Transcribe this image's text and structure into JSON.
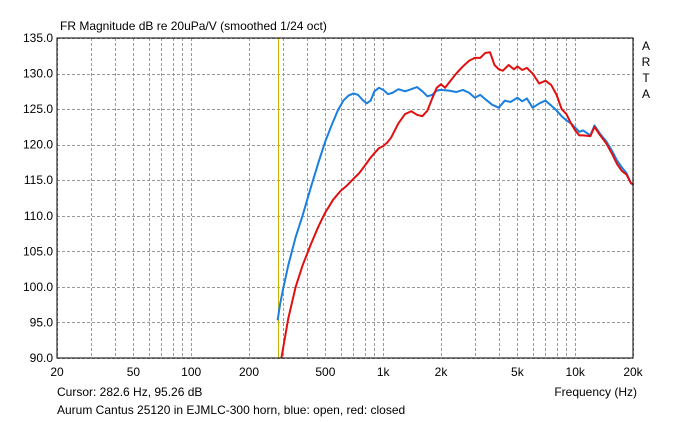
{
  "colors": {
    "background": "#ffffff",
    "plot_background": "#ffffff",
    "grid": "#9a9a9a",
    "blue": "#1a7fe0",
    "red": "#e01010",
    "cursor": "#c8b400",
    "frame": "#000000"
  },
  "chart_data": {
    "type": "line",
    "title": "FR Magnitude dB re 20uPa/V (smoothed 1/24 oct)",
    "xlabel": "Frequency (Hz)",
    "ylabel": "",
    "x_scale": "log",
    "xlim": [
      20,
      20000
    ],
    "ylim": [
      90,
      135
    ],
    "grid": true,
    "x_ticks": [
      {
        "value": 20,
        "label": "20"
      },
      {
        "value": 50,
        "label": "50"
      },
      {
        "value": 100,
        "label": "100"
      },
      {
        "value": 200,
        "label": "200"
      },
      {
        "value": 500,
        "label": "500"
      },
      {
        "value": 1000,
        "label": "1k"
      },
      {
        "value": 2000,
        "label": "2k"
      },
      {
        "value": 5000,
        "label": "5k"
      },
      {
        "value": 10000,
        "label": "10k"
      },
      {
        "value": 20000,
        "label": "20k"
      }
    ],
    "x_minor_gridlines": [
      30,
      40,
      60,
      70,
      80,
      90,
      300,
      400,
      600,
      700,
      800,
      900,
      3000,
      4000,
      6000,
      7000,
      8000,
      9000
    ],
    "y_ticks": [
      {
        "value": 90,
        "label": "90.0"
      },
      {
        "value": 95,
        "label": "95.0"
      },
      {
        "value": 100,
        "label": "100.0"
      },
      {
        "value": 105,
        "label": "105.0"
      },
      {
        "value": 110,
        "label": "110.0"
      },
      {
        "value": 115,
        "label": "115.0"
      },
      {
        "value": 120,
        "label": "120.0"
      },
      {
        "value": 125,
        "label": "125.0"
      },
      {
        "value": 130,
        "label": "130.0"
      },
      {
        "value": 135,
        "label": "135.0"
      }
    ],
    "side_label": [
      "A",
      "R",
      "T",
      "A"
    ],
    "cursor": {
      "frequency": 282.6,
      "text": "Cursor: 282.6 Hz, 95.26 dB"
    },
    "caption": "Aurum Cantus 25120 in EJMLC-300 horn, blue: open, red: closed",
    "series": [
      {
        "color": "blue",
        "points": [
          [
            282,
            95.3
          ],
          [
            290,
            97.5
          ],
          [
            300,
            99.5
          ],
          [
            320,
            103
          ],
          [
            350,
            107
          ],
          [
            380,
            110
          ],
          [
            420,
            114
          ],
          [
            460,
            117.5
          ],
          [
            500,
            120.5
          ],
          [
            540,
            122.8
          ],
          [
            580,
            124.8
          ],
          [
            620,
            126.2
          ],
          [
            660,
            126.9
          ],
          [
            700,
            127.2
          ],
          [
            740,
            127.0
          ],
          [
            780,
            126.3
          ],
          [
            820,
            125.8
          ],
          [
            860,
            126.2
          ],
          [
            900,
            127.5
          ],
          [
            950,
            128.0
          ],
          [
            1000,
            127.7
          ],
          [
            1060,
            127.1
          ],
          [
            1120,
            127.3
          ],
          [
            1200,
            127.8
          ],
          [
            1300,
            127.5
          ],
          [
            1400,
            127.8
          ],
          [
            1500,
            128.1
          ],
          [
            1600,
            127.5
          ],
          [
            1700,
            126.8
          ],
          [
            1800,
            127.0
          ],
          [
            1900,
            127.6
          ],
          [
            2000,
            127.7
          ],
          [
            2200,
            127.6
          ],
          [
            2400,
            127.4
          ],
          [
            2600,
            127.7
          ],
          [
            2800,
            127.3
          ],
          [
            3000,
            126.6
          ],
          [
            3200,
            127.0
          ],
          [
            3400,
            126.4
          ],
          [
            3700,
            125.6
          ],
          [
            4000,
            125.2
          ],
          [
            4300,
            126.2
          ],
          [
            4600,
            126.0
          ],
          [
            5000,
            126.6
          ],
          [
            5300,
            126.1
          ],
          [
            5600,
            126.5
          ],
          [
            6000,
            125.2
          ],
          [
            6500,
            125.8
          ],
          [
            7000,
            126.2
          ],
          [
            7500,
            125.5
          ],
          [
            8000,
            124.8
          ],
          [
            8500,
            124.0
          ],
          [
            9000,
            123.4
          ],
          [
            9500,
            123.0
          ],
          [
            10000,
            122.4
          ],
          [
            10500,
            121.8
          ],
          [
            11000,
            122.0
          ],
          [
            12000,
            121.3
          ],
          [
            12600,
            122.7
          ],
          [
            13500,
            121.5
          ],
          [
            14500,
            120.5
          ],
          [
            15500,
            119.2
          ],
          [
            16500,
            117.8
          ],
          [
            17500,
            116.8
          ],
          [
            18500,
            116.0
          ],
          [
            19500,
            114.6
          ],
          [
            20000,
            114.4
          ]
        ]
      },
      {
        "color": "red",
        "points": [
          [
            295,
            90.0
          ],
          [
            320,
            95.5
          ],
          [
            350,
            100.0
          ],
          [
            380,
            103.0
          ],
          [
            420,
            106.0
          ],
          [
            460,
            108.5
          ],
          [
            500,
            110.5
          ],
          [
            550,
            112.3
          ],
          [
            600,
            113.5
          ],
          [
            650,
            114.3
          ],
          [
            700,
            115.2
          ],
          [
            750,
            116.0
          ],
          [
            800,
            117.0
          ],
          [
            850,
            118.0
          ],
          [
            900,
            118.8
          ],
          [
            950,
            119.5
          ],
          [
            1000,
            119.8
          ],
          [
            1050,
            120.3
          ],
          [
            1100,
            121.0
          ],
          [
            1200,
            123.0
          ],
          [
            1300,
            124.3
          ],
          [
            1400,
            124.7
          ],
          [
            1500,
            124.2
          ],
          [
            1600,
            124.0
          ],
          [
            1700,
            124.8
          ],
          [
            1800,
            126.5
          ],
          [
            1900,
            128.0
          ],
          [
            2000,
            128.5
          ],
          [
            2100,
            128.0
          ],
          [
            2200,
            128.7
          ],
          [
            2400,
            130.0
          ],
          [
            2600,
            131.0
          ],
          [
            2800,
            131.8
          ],
          [
            3000,
            132.2
          ],
          [
            3200,
            132.2
          ],
          [
            3400,
            132.9
          ],
          [
            3600,
            133.0
          ],
          [
            3800,
            131.2
          ],
          [
            4000,
            130.6
          ],
          [
            4200,
            130.4
          ],
          [
            4500,
            131.2
          ],
          [
            4800,
            130.6
          ],
          [
            5000,
            131.0
          ],
          [
            5300,
            130.5
          ],
          [
            5600,
            130.8
          ],
          [
            6000,
            130.0
          ],
          [
            6500,
            128.6
          ],
          [
            7000,
            129.0
          ],
          [
            7500,
            128.4
          ],
          [
            8000,
            127.0
          ],
          [
            8500,
            125.0
          ],
          [
            9000,
            124.3
          ],
          [
            9500,
            123.0
          ],
          [
            10000,
            122.0
          ],
          [
            10500,
            121.3
          ],
          [
            11000,
            121.3
          ],
          [
            12000,
            121.2
          ],
          [
            12600,
            122.5
          ],
          [
            13500,
            121.3
          ],
          [
            14500,
            120.2
          ],
          [
            15500,
            118.8
          ],
          [
            16500,
            117.3
          ],
          [
            17500,
            116.3
          ],
          [
            18500,
            115.8
          ],
          [
            19500,
            114.6
          ],
          [
            20000,
            114.4
          ]
        ]
      }
    ]
  }
}
